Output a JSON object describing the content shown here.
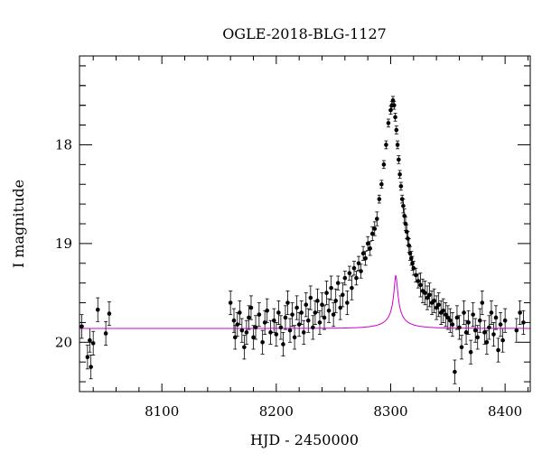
{
  "chart_data": {
    "type": "scatter",
    "title": "OGLE-2018-BLG-1127",
    "xlabel": "HJD - 2450000",
    "ylabel": "I magnitude",
    "xlim": [
      8028,
      8422
    ],
    "ylim": [
      20.5,
      17.1
    ],
    "y_inverted": true,
    "grid": false,
    "x_ticks": [
      8100,
      8200,
      8300,
      8400
    ],
    "x_tick_labels": [
      "8100",
      "8200",
      "8300",
      "8400"
    ],
    "y_ticks": [
      18,
      19,
      20
    ],
    "y_tick_labels": [
      "18",
      "19",
      "20"
    ],
    "model": {
      "t0": 8304.5,
      "tE": 28,
      "u0": 0.05,
      "baseline_mag": 19.86,
      "blend_fraction": 0.034,
      "color": "#cc00cc"
    },
    "series": [
      {
        "marker_color": "#000000",
        "x": [
          8030,
          8035,
          8037,
          8038,
          8040,
          8044,
          8051,
          8054,
          8160,
          8163,
          8164,
          8166,
          8168,
          8170,
          8172,
          8174,
          8176,
          8178,
          8180,
          8182,
          8185,
          8188,
          8190,
          8192,
          8195,
          8198,
          8200,
          8202,
          8204,
          8206,
          8208,
          8210,
          8212,
          8214,
          8216,
          8218,
          8220,
          8222,
          8224,
          8226,
          8228,
          8230,
          8232,
          8234,
          8236,
          8238,
          8240,
          8242,
          8244,
          8246,
          8248,
          8250,
          8252,
          8254,
          8256,
          8258,
          8260,
          8262,
          8264,
          8266,
          8268,
          8270,
          8272,
          8274,
          8276,
          8278,
          8280,
          8282,
          8284,
          8286,
          8288,
          8290,
          8292,
          8294,
          8296,
          8298,
          8300,
          8301,
          8302,
          8303,
          8304,
          8305,
          8306,
          8307,
          8308,
          8309,
          8310,
          8311,
          8312,
          8313,
          8314,
          8315,
          8316,
          8317,
          8318,
          8319,
          8320,
          8322,
          8324,
          8326,
          8328,
          8330,
          8332,
          8334,
          8336,
          8338,
          8340,
          8342,
          8344,
          8346,
          8348,
          8350,
          8352,
          8354,
          8356,
          8358,
          8360,
          8362,
          8364,
          8366,
          8368,
          8370,
          8372,
          8374,
          8376,
          8378,
          8380,
          8382,
          8384,
          8386,
          8388,
          8390,
          8392,
          8394,
          8396,
          8398,
          8400,
          8410,
          8413,
          8416
        ],
        "y": [
          19.84,
          20.15,
          19.98,
          20.25,
          20.01,
          19.67,
          19.91,
          19.71,
          19.6,
          19.78,
          19.95,
          19.82,
          19.7,
          19.88,
          20.05,
          19.9,
          19.75,
          19.65,
          19.95,
          19.85,
          19.72,
          20.0,
          19.8,
          19.68,
          19.9,
          19.78,
          19.92,
          19.7,
          19.85,
          20.02,
          19.75,
          19.6,
          19.88,
          19.72,
          19.95,
          19.65,
          19.82,
          19.7,
          19.9,
          19.62,
          19.78,
          19.55,
          19.85,
          19.7,
          19.58,
          19.8,
          19.62,
          19.75,
          19.5,
          19.68,
          19.45,
          19.72,
          19.58,
          19.4,
          19.65,
          19.52,
          19.35,
          19.6,
          19.3,
          19.45,
          19.25,
          19.35,
          19.2,
          19.28,
          19.1,
          19.15,
          19.0,
          19.05,
          18.9,
          18.85,
          18.75,
          18.55,
          18.4,
          18.2,
          18.0,
          17.78,
          17.65,
          17.6,
          17.55,
          17.6,
          17.72,
          17.85,
          18.0,
          18.15,
          18.3,
          18.42,
          18.55,
          18.62,
          18.72,
          18.8,
          18.88,
          18.95,
          19.02,
          19.1,
          19.15,
          19.2,
          19.25,
          19.32,
          19.38,
          19.42,
          19.48,
          19.5,
          19.55,
          19.52,
          19.6,
          19.58,
          19.65,
          19.62,
          19.7,
          19.68,
          19.72,
          19.75,
          19.78,
          19.82,
          20.3,
          19.75,
          19.85,
          20.05,
          19.7,
          19.9,
          19.8,
          20.1,
          19.72,
          19.88,
          19.95,
          19.78,
          19.6,
          19.9,
          20.0,
          19.85,
          19.7,
          19.92,
          19.75,
          20.08,
          19.82,
          19.98,
          19.78,
          19.88,
          19.7,
          19.8
        ]
      }
    ]
  }
}
